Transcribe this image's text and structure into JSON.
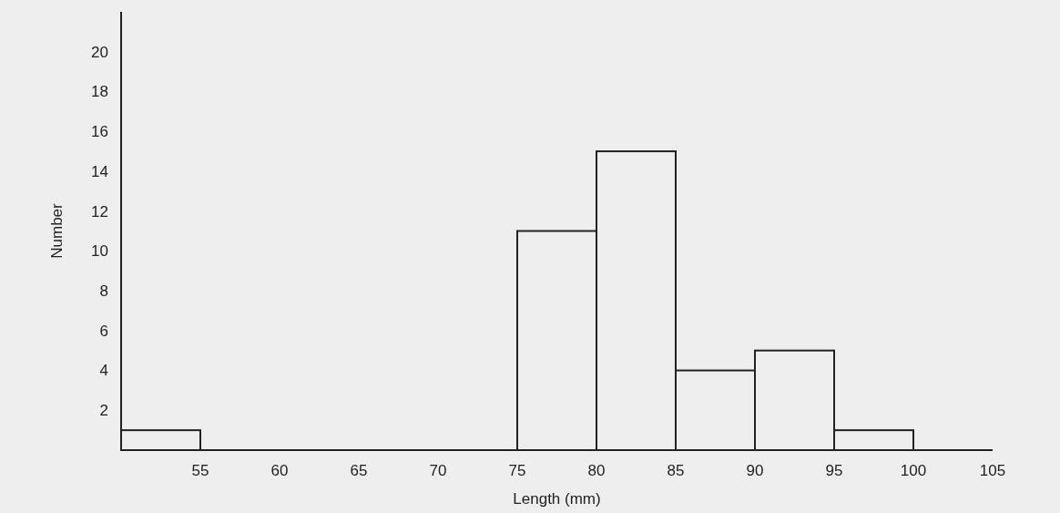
{
  "chart_data": {
    "type": "histogram",
    "xlabel": "Length (mm)",
    "ylabel": "Number",
    "bins": [
      50,
      55,
      60,
      65,
      70,
      75,
      80,
      85,
      90,
      95,
      100,
      105
    ],
    "values": [
      1,
      0,
      0,
      0,
      0,
      11,
      15,
      4,
      5,
      1,
      0
    ],
    "color": "#222222",
    "xlim": [
      50,
      105
    ],
    "xticks": [
      55,
      60,
      65,
      70,
      75,
      80,
      85,
      90,
      95,
      100,
      105
    ],
    "ylim": [
      0,
      22
    ],
    "yticks": [
      2,
      4,
      6,
      8,
      10,
      12,
      14,
      16,
      18,
      20
    ],
    "grid": false
  }
}
